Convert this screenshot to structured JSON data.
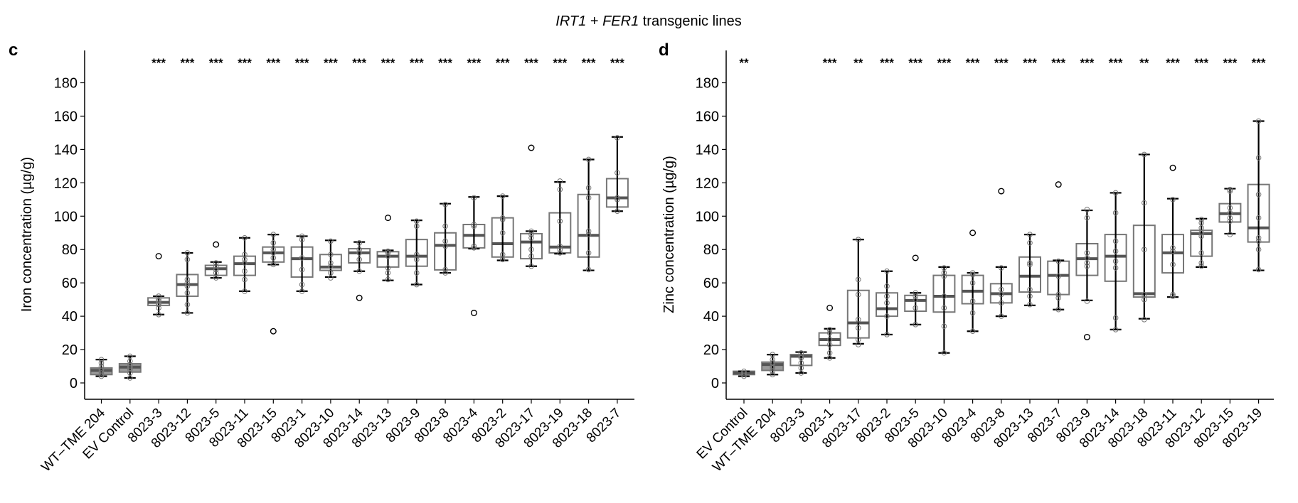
{
  "figure_title": {
    "part1": "IRT1",
    "part2": " + ",
    "part3": "FER1",
    "part4": " transgenic lines"
  },
  "chart_data": [
    {
      "panel": "c",
      "type": "box",
      "ylabel": "Iron concentration (µg/g)",
      "ylim": [
        -10,
        199
      ],
      "yticks": [
        0,
        20,
        40,
        60,
        80,
        100,
        120,
        140,
        160,
        180
      ],
      "grid": false,
      "colors": {
        "control_fill": "#9a9a9a",
        "box_stroke": "#777777",
        "median": "#555555",
        "whisker": "#000000",
        "point": "#777777"
      },
      "categories": [
        "WT–TME 204",
        "EV Control",
        "8023-3",
        "8023-12",
        "8023-5",
        "8023-11",
        "8023-15",
        "8023-1",
        "8023-10",
        "8023-14",
        "8023-13",
        "8023-9",
        "8023-8",
        "8023-4",
        "8023-2",
        "8023-17",
        "8023-19",
        "8023-18",
        "8023-7"
      ],
      "significance": [
        "",
        "",
        "***",
        "***",
        "***",
        "***",
        "***",
        "***",
        "***",
        "***",
        "***",
        "***",
        "***",
        "***",
        "***",
        "***",
        "***",
        "***",
        "***"
      ],
      "control": [
        true,
        true,
        false,
        false,
        false,
        false,
        false,
        false,
        false,
        false,
        false,
        false,
        false,
        false,
        false,
        false,
        false,
        false,
        false
      ],
      "boxes": [
        {
          "low": 4,
          "q1": 5,
          "median": 7.5,
          "q3": 9,
          "high": 14,
          "points": [
            4,
            5,
            6,
            7,
            8,
            10,
            12,
            14
          ],
          "outliers": []
        },
        {
          "low": 3,
          "q1": 6.5,
          "median": 9.5,
          "q3": 11.5,
          "high": 16,
          "points": [
            3,
            6,
            8,
            9,
            10,
            11,
            13,
            16
          ],
          "outliers": []
        },
        {
          "low": 41,
          "q1": 46.5,
          "median": 48.3,
          "q3": 51,
          "high": 52,
          "points": [
            41,
            45,
            47,
            48,
            49,
            50,
            52
          ],
          "outliers": [
            76
          ]
        },
        {
          "low": 42,
          "q1": 52,
          "median": 59,
          "q3": 65,
          "high": 78,
          "points": [
            42,
            47,
            54,
            58,
            60,
            62,
            74,
            78
          ],
          "outliers": []
        },
        {
          "low": 63,
          "q1": 64.5,
          "median": 68.5,
          "q3": 70.5,
          "high": 72.5,
          "points": [
            63,
            66,
            68,
            70,
            72
          ],
          "outliers": [
            83
          ]
        },
        {
          "low": 55,
          "q1": 64.5,
          "median": 71.5,
          "q3": 76,
          "high": 87,
          "points": [
            55,
            62,
            67,
            72,
            74,
            77,
            87
          ],
          "outliers": []
        },
        {
          "low": 71,
          "q1": 72.5,
          "median": 78,
          "q3": 81.5,
          "high": 89,
          "points": [
            71,
            75,
            78,
            80,
            84,
            89
          ],
          "outliers": [
            31
          ]
        },
        {
          "low": 55,
          "q1": 63.5,
          "median": 74.5,
          "q3": 81.5,
          "high": 88,
          "points": [
            55,
            59,
            68,
            75,
            86,
            88
          ],
          "outliers": []
        },
        {
          "low": 63.5,
          "q1": 67.5,
          "median": 69.5,
          "q3": 77,
          "high": 85.5,
          "points": [
            63,
            66,
            70,
            72,
            77,
            85
          ],
          "outliers": []
        },
        {
          "low": 67,
          "q1": 72,
          "median": 78,
          "q3": 80.5,
          "high": 84.5,
          "points": [
            67,
            74,
            78,
            80,
            84
          ],
          "outliers": [
            51
          ]
        },
        {
          "low": 61.5,
          "q1": 69.5,
          "median": 76,
          "q3": 78.7,
          "high": 79.5,
          "points": [
            62,
            66,
            69,
            76,
            78,
            79
          ],
          "outliers": [
            99
          ]
        },
        {
          "low": 59,
          "q1": 70,
          "median": 76,
          "q3": 86,
          "high": 97.5,
          "points": [
            59,
            66,
            74,
            77,
            94,
            97
          ],
          "outliers": []
        },
        {
          "low": 66,
          "q1": 67.8,
          "median": 82.5,
          "q3": 90,
          "high": 107.5,
          "points": [
            66,
            68,
            82,
            85,
            94,
            107
          ],
          "outliers": []
        },
        {
          "low": 80.5,
          "q1": 81,
          "median": 88.5,
          "q3": 95,
          "high": 111.5,
          "points": [
            81,
            82,
            94,
            95,
            111
          ],
          "outliers": [
            42
          ]
        },
        {
          "low": 73.5,
          "q1": 75.5,
          "median": 83.5,
          "q3": 99,
          "high": 112,
          "points": [
            74,
            77,
            90,
            98,
            99,
            112
          ],
          "outliers": []
        },
        {
          "low": 70,
          "q1": 74.5,
          "median": 84.5,
          "q3": 89.5,
          "high": 91,
          "points": [
            70,
            76,
            80,
            87,
            89,
            91
          ],
          "outliers": [
            141
          ]
        },
        {
          "low": 77.5,
          "q1": 78,
          "median": 81.5,
          "q3": 102,
          "high": 120.5,
          "points": [
            78,
            80,
            82,
            97,
            116,
            121
          ],
          "outliers": []
        },
        {
          "low": 67.5,
          "q1": 75.5,
          "median": 88.5,
          "q3": 113,
          "high": 134,
          "points": [
            68,
            78,
            89,
            91,
            111,
            117,
            134
          ],
          "outliers": []
        },
        {
          "low": 103,
          "q1": 105.5,
          "median": 111,
          "q3": 122.5,
          "high": 147.5,
          "points": [
            103,
            110,
            111,
            126,
            147
          ],
          "outliers": []
        }
      ]
    },
    {
      "panel": "d",
      "type": "box",
      "ylabel": "Zinc concentration (µg/g)",
      "ylim": [
        -10,
        199
      ],
      "yticks": [
        0,
        20,
        40,
        60,
        80,
        100,
        120,
        140,
        160,
        180
      ],
      "grid": false,
      "colors": {
        "control_fill": "#9a9a9a",
        "box_stroke": "#777777",
        "median": "#555555",
        "whisker": "#000000",
        "point": "#777777"
      },
      "categories": [
        "EV Control",
        "WT–TME 204",
        "8023-3",
        "8023-1",
        "8023-17",
        "8023-2",
        "8023-5",
        "8023-10",
        "8023-4",
        "8023-8",
        "8023-13",
        "8023-7",
        "8023-9",
        "8023-14",
        "8023-18",
        "8023-11",
        "8023-12",
        "8023-15",
        "8023-19"
      ],
      "significance": [
        "**",
        "",
        "",
        "***",
        "**",
        "***",
        "***",
        "***",
        "***",
        "***",
        "***",
        "***",
        "***",
        "***",
        "**",
        "***",
        "***",
        "***",
        "***"
      ],
      "control": [
        true,
        true,
        false,
        false,
        false,
        false,
        false,
        false,
        false,
        false,
        false,
        false,
        false,
        false,
        false,
        false,
        false,
        false,
        false
      ],
      "boxes": [
        {
          "low": 4,
          "q1": 5,
          "median": 6,
          "q3": 7,
          "high": 7,
          "points": [
            4,
            5,
            6,
            6,
            7
          ],
          "outliers": []
        },
        {
          "low": 5,
          "q1": 7.5,
          "median": 11,
          "q3": 12.5,
          "high": 17,
          "points": [
            5,
            7,
            9,
            10,
            12,
            14,
            17
          ],
          "outliers": []
        },
        {
          "low": 6,
          "q1": 10.5,
          "median": 16,
          "q3": 17,
          "high": 18.5,
          "points": [
            6,
            9,
            12,
            15,
            16,
            18
          ],
          "outliers": []
        },
        {
          "low": 15,
          "q1": 22.5,
          "median": 26,
          "q3": 30,
          "high": 32.5,
          "points": [
            15,
            18,
            23,
            26,
            30,
            32
          ],
          "outliers": [
            45
          ]
        },
        {
          "low": 23.5,
          "q1": 27,
          "median": 36,
          "q3": 55.5,
          "high": 86,
          "points": [
            23,
            26,
            33,
            38,
            53,
            62,
            86
          ],
          "outliers": []
        },
        {
          "low": 29,
          "q1": 40,
          "median": 44.5,
          "q3": 54,
          "high": 67,
          "points": [
            29,
            40,
            48,
            52,
            58,
            67
          ],
          "outliers": []
        },
        {
          "low": 35,
          "q1": 43,
          "median": 49.5,
          "q3": 52.5,
          "high": 54,
          "points": [
            35,
            45,
            50,
            52,
            54
          ],
          "outliers": [
            75
          ]
        },
        {
          "low": 18,
          "q1": 42.5,
          "median": 52,
          "q3": 64.5,
          "high": 69.5,
          "points": [
            18,
            34,
            45,
            52,
            64,
            66,
            69
          ],
          "outliers": []
        },
        {
          "low": 31,
          "q1": 47.5,
          "median": 55,
          "q3": 64.5,
          "high": 66,
          "points": [
            31,
            42,
            49,
            60,
            65,
            66
          ],
          "outliers": [
            90
          ]
        },
        {
          "low": 40,
          "q1": 48,
          "median": 53.5,
          "q3": 59.5,
          "high": 69.5,
          "points": [
            40,
            48,
            53,
            56,
            69
          ],
          "outliers": [
            115
          ]
        },
        {
          "low": 46.5,
          "q1": 54.5,
          "median": 64,
          "q3": 75.5,
          "high": 89,
          "points": [
            47,
            52,
            56,
            71,
            72,
            84,
            89
          ],
          "outliers": []
        },
        {
          "low": 44,
          "q1": 53,
          "median": 64.5,
          "q3": 73,
          "high": 73.5,
          "points": [
            44,
            51,
            53,
            64,
            73
          ],
          "outliers": [
            119
          ]
        },
        {
          "low": 49.5,
          "q1": 64.5,
          "median": 74.5,
          "q3": 83.5,
          "high": 103.5,
          "points": [
            49,
            70,
            72,
            75,
            78,
            99,
            104
          ],
          "outliers": [
            27.5
          ]
        },
        {
          "low": 32,
          "q1": 61,
          "median": 76,
          "q3": 89,
          "high": 114,
          "points": [
            32,
            39,
            69,
            73,
            79,
            85,
            102,
            114
          ],
          "outliers": []
        },
        {
          "low": 38.5,
          "q1": 51.5,
          "median": 53.5,
          "q3": 94.5,
          "high": 137,
          "points": [
            38,
            50,
            53,
            80,
            108,
            137
          ],
          "outliers": []
        },
        {
          "low": 51.5,
          "q1": 66,
          "median": 78,
          "q3": 89,
          "high": 110.5,
          "points": [
            52,
            53,
            71,
            79,
            81,
            110
          ],
          "outliers": [
            129
          ]
        },
        {
          "low": 69.5,
          "q1": 76,
          "median": 89.5,
          "q3": 91.5,
          "high": 98.5,
          "points": [
            70,
            72,
            78,
            88,
            90,
            93,
            96,
            98
          ],
          "outliers": []
        },
        {
          "low": 89.5,
          "q1": 96.5,
          "median": 101.5,
          "q3": 107.5,
          "high": 116.5,
          "points": [
            89,
            97,
            99,
            102,
            105,
            115,
            116
          ],
          "outliers": []
        },
        {
          "low": 67.5,
          "q1": 84.5,
          "median": 93,
          "q3": 119,
          "high": 157,
          "points": [
            68,
            80,
            85,
            87,
            99,
            113,
            135,
            157
          ],
          "outliers": []
        }
      ]
    }
  ]
}
